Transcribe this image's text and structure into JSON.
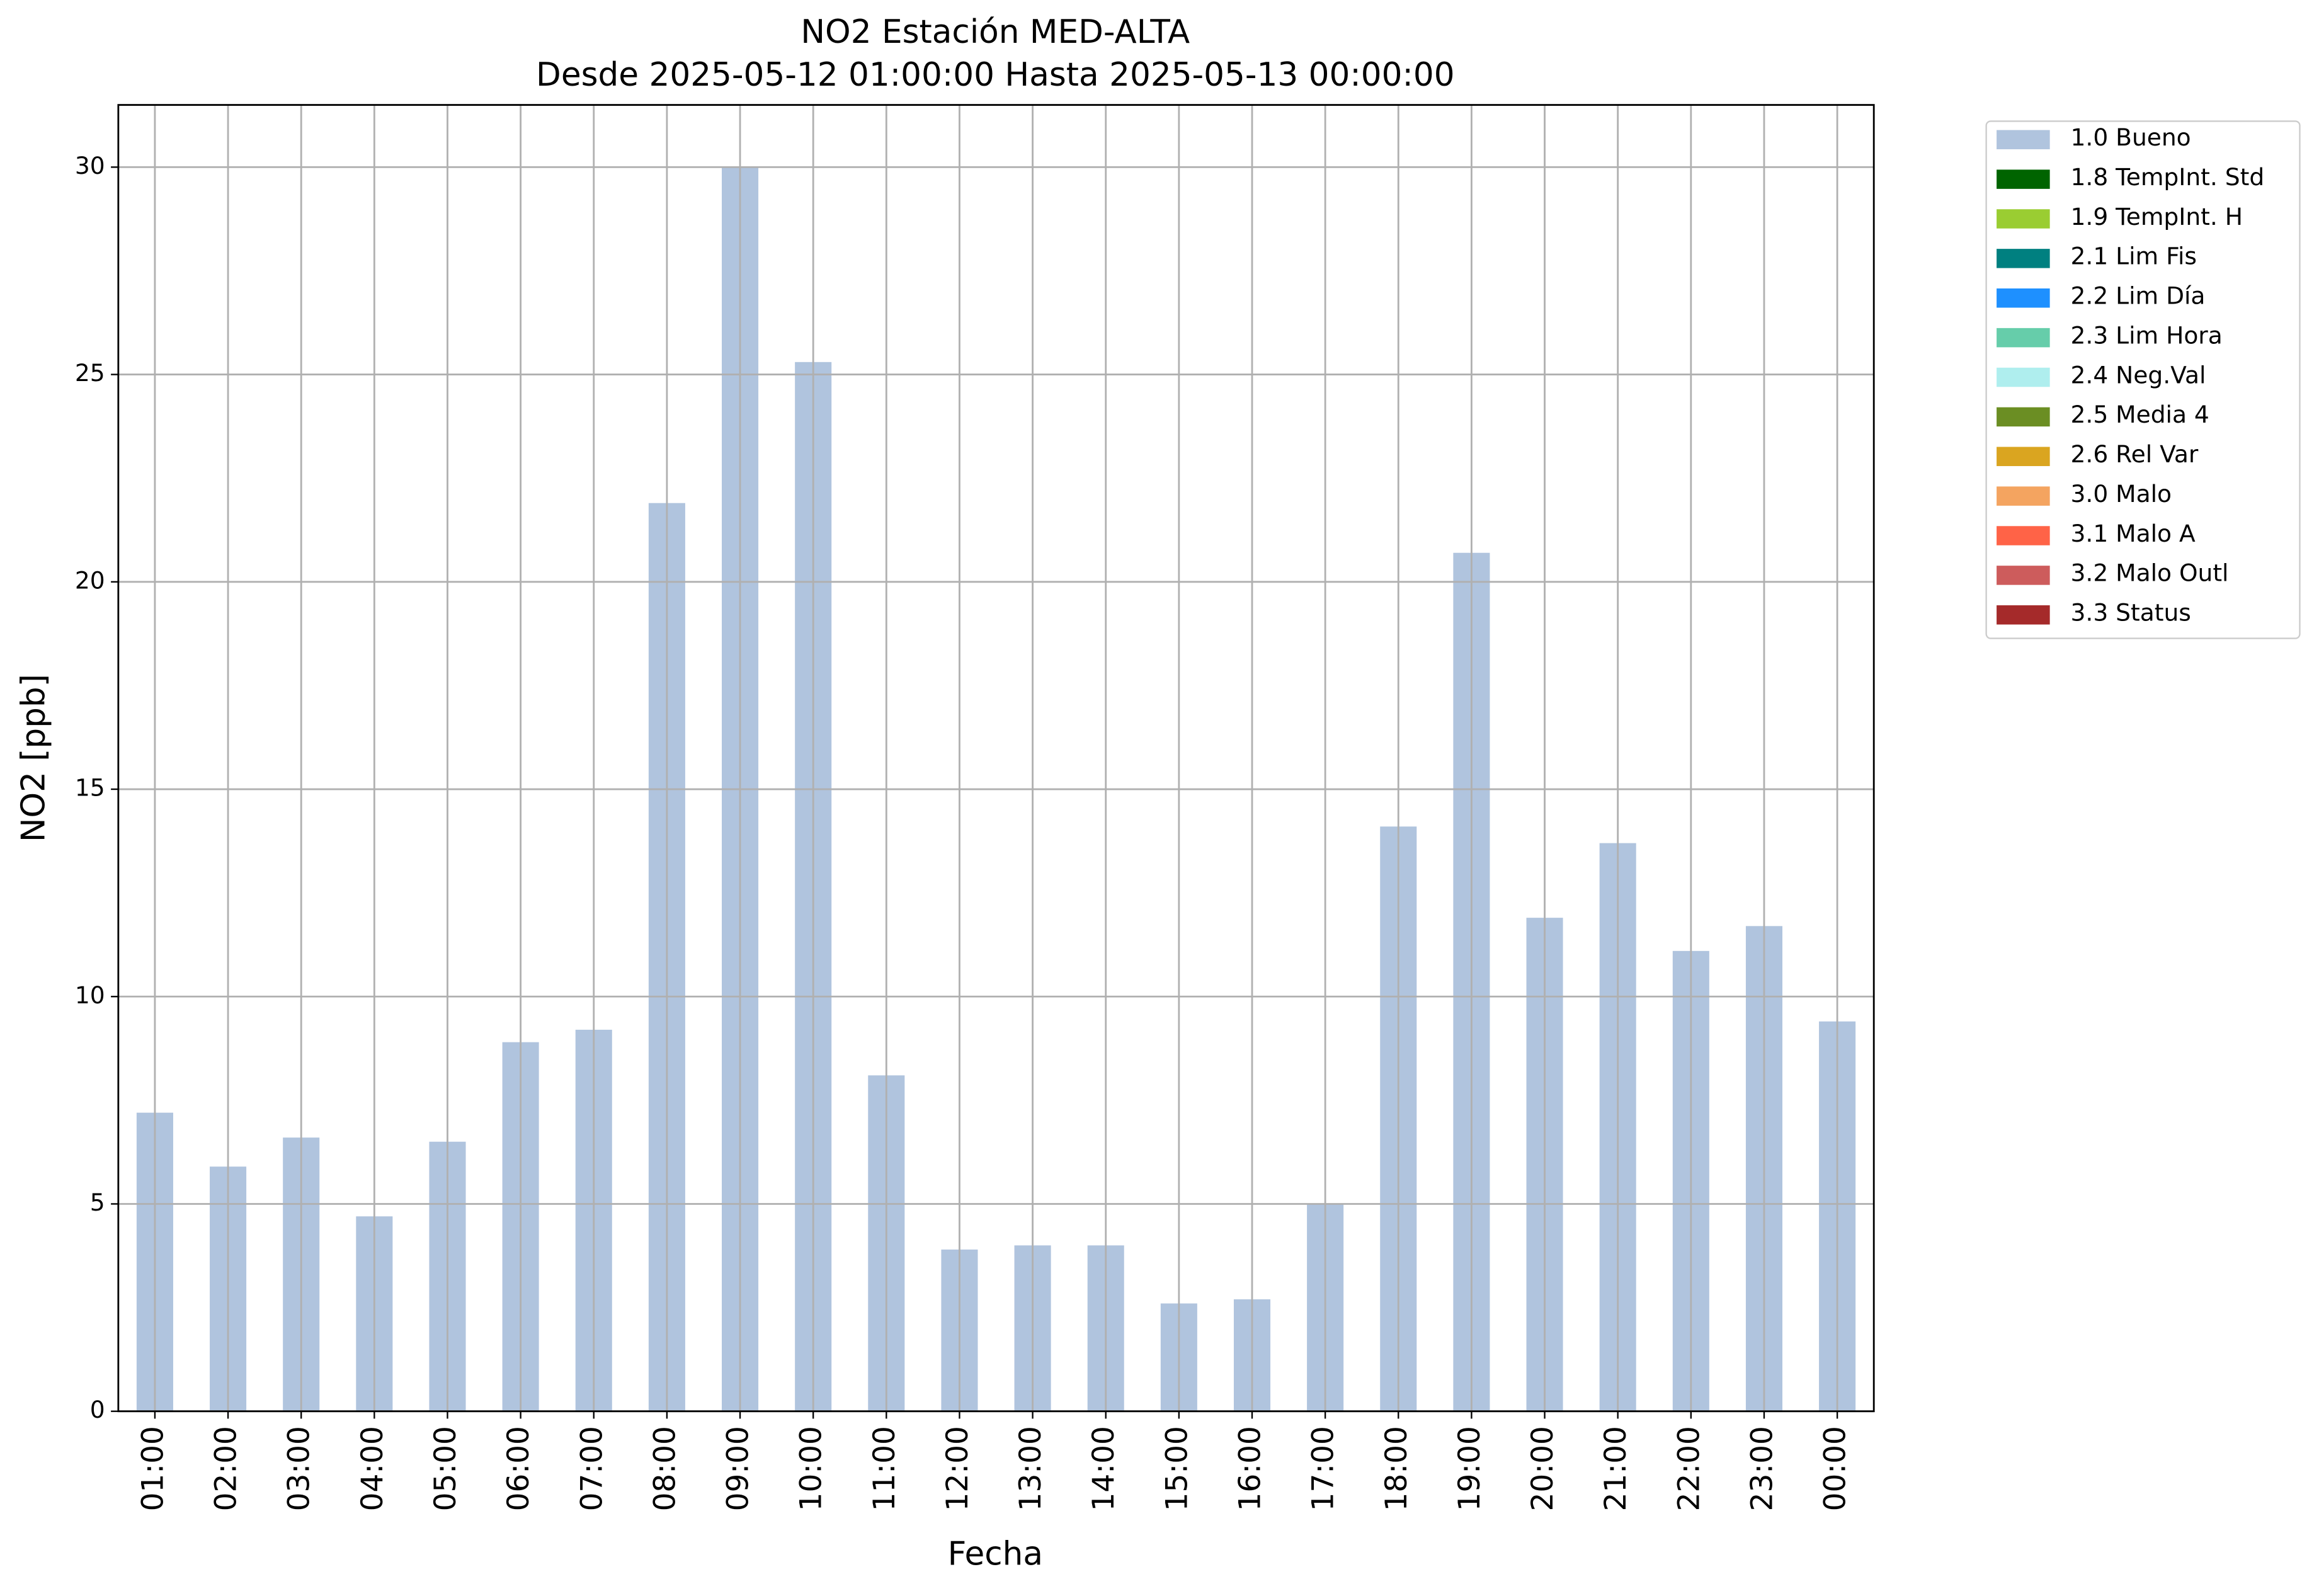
{
  "chart_data": {
    "type": "bar",
    "title": "NO2 Estación MED-ALTA",
    "subtitle": "Desde 2025-05-12 01:00:00 Hasta 2025-05-13 00:00:00",
    "x_label": "Fecha",
    "y_label": "NO2 [ppb]",
    "categories": [
      "01:00",
      "02:00",
      "03:00",
      "04:00",
      "05:00",
      "06:00",
      "07:00",
      "08:00",
      "09:00",
      "10:00",
      "11:00",
      "12:00",
      "13:00",
      "14:00",
      "15:00",
      "16:00",
      "17:00",
      "18:00",
      "19:00",
      "20:00",
      "21:00",
      "22:00",
      "23:00",
      "00:00"
    ],
    "series": [
      {
        "name": "1.0 Bueno",
        "color": "#b0c4de",
        "values": [
          7.2,
          5.9,
          6.6,
          4.7,
          6.5,
          8.9,
          9.2,
          21.9,
          30.0,
          25.3,
          8.1,
          3.9,
          4.0,
          4.0,
          2.6,
          2.7,
          5.0,
          14.1,
          20.7,
          11.9,
          13.7,
          11.1,
          11.7,
          9.4
        ]
      },
      {
        "name": "1.8 TempInt. Std",
        "color": "#006400",
        "values": [
          null,
          null,
          null,
          null,
          null,
          null,
          null,
          null,
          null,
          null,
          null,
          null,
          null,
          null,
          null,
          null,
          null,
          null,
          null,
          null,
          null,
          null,
          null,
          null
        ]
      },
      {
        "name": "1.9 TempInt. H",
        "color": "#9acd32",
        "values": [
          null,
          null,
          null,
          null,
          null,
          null,
          null,
          null,
          null,
          null,
          null,
          null,
          null,
          null,
          null,
          null,
          null,
          null,
          null,
          null,
          null,
          null,
          null,
          null
        ]
      },
      {
        "name": "2.1 Lim Fis",
        "color": "#008080",
        "values": [
          null,
          null,
          null,
          null,
          null,
          null,
          null,
          null,
          null,
          null,
          null,
          null,
          null,
          null,
          null,
          null,
          null,
          null,
          null,
          null,
          null,
          null,
          null,
          null
        ]
      },
      {
        "name": "2.2 Lim Día",
        "color": "#1e90ff",
        "values": [
          null,
          null,
          null,
          null,
          null,
          null,
          null,
          null,
          null,
          null,
          null,
          null,
          null,
          null,
          null,
          null,
          null,
          null,
          null,
          null,
          null,
          null,
          null,
          null
        ]
      },
      {
        "name": "2.3 Lim Hora",
        "color": "#66cdaa",
        "values": [
          null,
          null,
          null,
          null,
          null,
          null,
          null,
          null,
          null,
          null,
          null,
          null,
          null,
          null,
          null,
          null,
          null,
          null,
          null,
          null,
          null,
          null,
          null,
          null
        ]
      },
      {
        "name": "2.4 Neg.Val",
        "color": "#afeeee",
        "values": [
          null,
          null,
          null,
          null,
          null,
          null,
          null,
          null,
          null,
          null,
          null,
          null,
          null,
          null,
          null,
          null,
          null,
          null,
          null,
          null,
          null,
          null,
          null,
          null
        ]
      },
      {
        "name": "2.5 Media 4",
        "color": "#6b8e23",
        "values": [
          null,
          null,
          null,
          null,
          null,
          null,
          null,
          null,
          null,
          null,
          null,
          null,
          null,
          null,
          null,
          null,
          null,
          null,
          null,
          null,
          null,
          null,
          null,
          null
        ]
      },
      {
        "name": "2.6 Rel Var",
        "color": "#daa520",
        "values": [
          null,
          null,
          null,
          null,
          null,
          null,
          null,
          null,
          null,
          null,
          null,
          null,
          null,
          null,
          null,
          null,
          null,
          null,
          null,
          null,
          null,
          null,
          null,
          null
        ]
      },
      {
        "name": "3.0 Malo",
        "color": "#f4a460",
        "values": [
          null,
          null,
          null,
          null,
          null,
          null,
          null,
          null,
          null,
          null,
          null,
          null,
          null,
          null,
          null,
          null,
          null,
          null,
          null,
          null,
          null,
          null,
          null,
          null
        ]
      },
      {
        "name": "3.1 Malo A",
        "color": "#ff6347",
        "values": [
          null,
          null,
          null,
          null,
          null,
          null,
          null,
          null,
          null,
          null,
          null,
          null,
          null,
          null,
          null,
          null,
          null,
          null,
          null,
          null,
          null,
          null,
          null,
          null
        ]
      },
      {
        "name": "3.2 Malo Outl",
        "color": "#cd5c5c",
        "values": [
          null,
          null,
          null,
          null,
          null,
          null,
          null,
          null,
          null,
          null,
          null,
          null,
          null,
          null,
          null,
          null,
          null,
          null,
          null,
          null,
          null,
          null,
          null,
          null
        ]
      },
      {
        "name": "3.3 Status",
        "color": "#a52a2a",
        "values": [
          null,
          null,
          null,
          null,
          null,
          null,
          null,
          null,
          null,
          null,
          null,
          null,
          null,
          null,
          null,
          null,
          null,
          null,
          null,
          null,
          null,
          null,
          null,
          null
        ]
      }
    ],
    "stacked": true,
    "ylim": [
      0,
      31.5
    ],
    "yticks": [
      0,
      5,
      10,
      15,
      20,
      25,
      30
    ],
    "grid": true,
    "legend": "outside right"
  }
}
